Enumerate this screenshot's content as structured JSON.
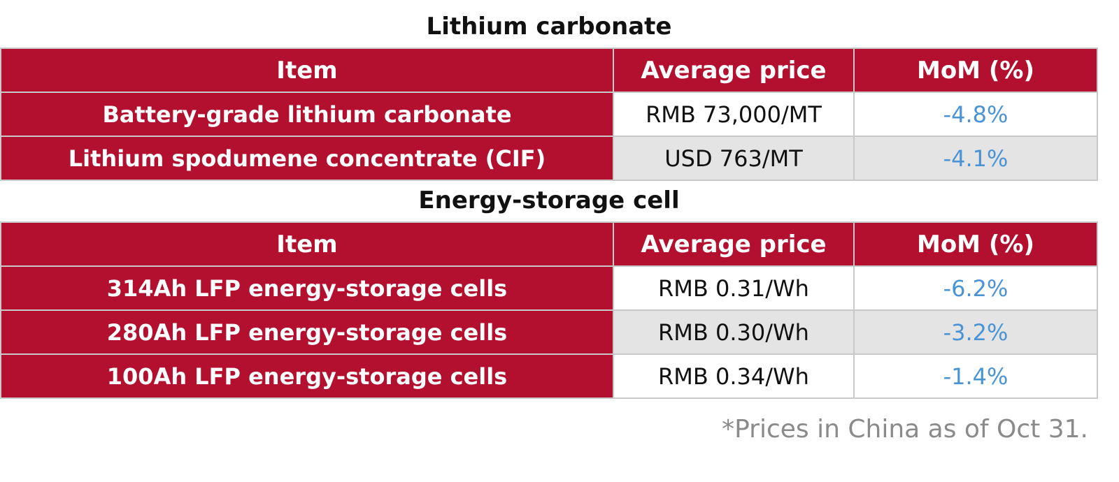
{
  "sections": [
    {
      "title": "Lithium carbonate",
      "header": [
        "Item",
        "Average price",
        "MoM (%)"
      ],
      "rows": [
        [
          "Battery-grade lithium carbonate",
          "RMB 73,000/MT",
          "-4.8%"
        ],
        [
          "Lithium spodumene concentrate (CIF)",
          "USD 763/MT",
          "-4.1%"
        ]
      ]
    },
    {
      "title": "Energy-storage cell",
      "header": [
        "Item",
        "Average price",
        "MoM (%)"
      ],
      "rows": [
        [
          "314Ah LFP energy-storage cells",
          "RMB 0.31/Wh",
          "-6.2%"
        ],
        [
          "280Ah LFP energy-storage cells",
          "RMB 0.30/Wh",
          "-3.2%"
        ],
        [
          "100Ah LFP energy-storage cells",
          "RMB 0.34/Wh",
          "-1.4%"
        ]
      ]
    }
  ],
  "footnote": "*Prices in China as of Oct 31."
}
